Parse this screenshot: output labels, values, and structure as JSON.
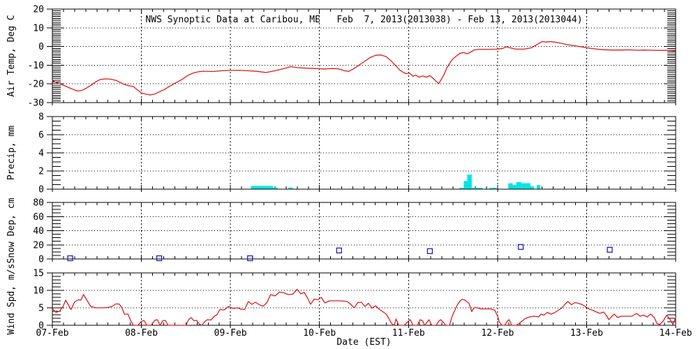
{
  "figure": {
    "title": "NWS Synoptic Data at Caribou, ME   Feb  7, 2013(2013038) - Feb 13, 2013(2013044)",
    "xlabel": "Date (EST)",
    "x_tick_labels": [
      "07-Feb",
      "08-Feb",
      "09-Feb",
      "10-Feb",
      "11-Feb",
      "12-Feb",
      "13-Feb",
      "14-Feb"
    ],
    "background": "#ffffff",
    "frame_color": "#000000"
  },
  "chart_data": [
    {
      "id": "air-temp",
      "type": "line",
      "ylabel": "Air Temp, Deg C",
      "ylim": [
        -30,
        20
      ],
      "yticks": [
        -30,
        -20,
        -10,
        0,
        10,
        20
      ],
      "y_minor_step": 1,
      "color": "#dc1c1c",
      "x_unit": "days since 07-Feb-2013 00:00 EST",
      "points": [
        [
          0.0,
          -18.3
        ],
        [
          0.07,
          -19.8
        ],
        [
          0.14,
          -21.0
        ],
        [
          0.21,
          -22.5
        ],
        [
          0.28,
          -23.8
        ],
        [
          0.33,
          -23.5
        ],
        [
          0.38,
          -22.3
        ],
        [
          0.44,
          -20.6
        ],
        [
          0.49,
          -18.8
        ],
        [
          0.54,
          -17.6
        ],
        [
          0.6,
          -17.3
        ],
        [
          0.66,
          -17.5
        ],
        [
          0.72,
          -18.2
        ],
        [
          0.8,
          -20.1
        ],
        [
          0.86,
          -21.0
        ],
        [
          0.91,
          -21.4
        ],
        [
          0.95,
          -23.0
        ],
        [
          1.0,
          -24.9
        ],
        [
          1.05,
          -25.5
        ],
        [
          1.1,
          -25.9
        ],
        [
          1.15,
          -25.4
        ],
        [
          1.2,
          -24.3
        ],
        [
          1.26,
          -23.0
        ],
        [
          1.32,
          -21.2
        ],
        [
          1.38,
          -19.6
        ],
        [
          1.45,
          -17.8
        ],
        [
          1.52,
          -15.5
        ],
        [
          1.58,
          -14.2
        ],
        [
          1.64,
          -13.5
        ],
        [
          1.7,
          -13.2
        ],
        [
          1.8,
          -13.4
        ],
        [
          1.9,
          -13.0
        ],
        [
          2.0,
          -12.8
        ],
        [
          2.1,
          -12.7
        ],
        [
          2.2,
          -13.0
        ],
        [
          2.3,
          -13.3
        ],
        [
          2.4,
          -13.9
        ],
        [
          2.5,
          -13.0
        ],
        [
          2.6,
          -11.8
        ],
        [
          2.68,
          -10.8
        ],
        [
          2.75,
          -11.3
        ],
        [
          2.85,
          -11.6
        ],
        [
          2.95,
          -11.8
        ],
        [
          3.05,
          -12.0
        ],
        [
          3.15,
          -11.8
        ],
        [
          3.21,
          -11.9
        ],
        [
          3.28,
          -13.0
        ],
        [
          3.33,
          -13.3
        ],
        [
          3.38,
          -12.0
        ],
        [
          3.45,
          -9.8
        ],
        [
          3.51,
          -7.8
        ],
        [
          3.57,
          -5.9
        ],
        [
          3.63,
          -4.7
        ],
        [
          3.69,
          -4.5
        ],
        [
          3.75,
          -5.5
        ],
        [
          3.8,
          -7.5
        ],
        [
          3.85,
          -10.0
        ],
        [
          3.9,
          -12.5
        ],
        [
          3.93,
          -13.5
        ],
        [
          3.97,
          -14.5
        ],
        [
          4.01,
          -14.2
        ],
        [
          4.05,
          -16.0
        ],
        [
          4.08,
          -15.3
        ],
        [
          4.12,
          -16.4
        ],
        [
          4.16,
          -15.7
        ],
        [
          4.2,
          -16.4
        ],
        [
          4.24,
          -15.6
        ],
        [
          4.28,
          -17.2
        ],
        [
          4.31,
          -18.6
        ],
        [
          4.34,
          -19.8
        ],
        [
          4.37,
          -17.4
        ],
        [
          4.4,
          -15.0
        ],
        [
          4.43,
          -11.5
        ],
        [
          4.47,
          -8.5
        ],
        [
          4.5,
          -6.5
        ],
        [
          4.54,
          -5.0
        ],
        [
          4.58,
          -3.6
        ],
        [
          4.62,
          -3.3
        ],
        [
          4.66,
          -3.9
        ],
        [
          4.7,
          -2.9
        ],
        [
          4.74,
          -1.8
        ],
        [
          4.8,
          -1.5
        ],
        [
          4.9,
          -1.5
        ],
        [
          5.0,
          -1.4
        ],
        [
          5.06,
          -1.0
        ],
        [
          5.1,
          -0.2
        ],
        [
          5.15,
          -0.8
        ],
        [
          5.2,
          -1.4
        ],
        [
          5.3,
          -1.4
        ],
        [
          5.38,
          -0.7
        ],
        [
          5.44,
          1.0
        ],
        [
          5.5,
          2.6
        ],
        [
          5.55,
          2.4
        ],
        [
          5.6,
          2.6
        ],
        [
          5.66,
          2.2
        ],
        [
          5.72,
          1.6
        ],
        [
          5.78,
          1.0
        ],
        [
          5.84,
          0.6
        ],
        [
          5.9,
          0.1
        ],
        [
          5.97,
          -0.4
        ],
        [
          6.03,
          -0.9
        ],
        [
          6.1,
          -1.3
        ],
        [
          6.18,
          -1.7
        ],
        [
          6.28,
          -1.9
        ],
        [
          6.38,
          -1.9
        ],
        [
          6.48,
          -1.8
        ],
        [
          6.57,
          -2.0
        ],
        [
          6.65,
          -1.9
        ],
        [
          6.73,
          -2.0
        ],
        [
          6.82,
          -2.1
        ],
        [
          6.9,
          -2.1
        ],
        [
          7.0,
          -2.4
        ]
      ]
    },
    {
      "id": "precip",
      "type": "bar",
      "ylabel": "Precip, mm",
      "ylim": [
        0,
        8
      ],
      "yticks": [
        0,
        2,
        4,
        6,
        8
      ],
      "y_minor_step": 0.5,
      "color": "#00e5e5",
      "bars": [
        [
          2.23,
          2.48,
          0.35
        ],
        [
          2.48,
          2.53,
          0.18
        ],
        [
          2.65,
          2.7,
          0.18
        ],
        [
          4.57,
          4.62,
          0.15
        ],
        [
          4.62,
          4.66,
          0.9
        ],
        [
          4.66,
          4.71,
          1.6
        ],
        [
          4.71,
          4.83,
          0.15
        ],
        [
          4.91,
          4.99,
          0.15
        ],
        [
          5.12,
          5.17,
          0.65
        ],
        [
          5.17,
          5.21,
          0.45
        ],
        [
          5.21,
          5.27,
          0.78
        ],
        [
          5.27,
          5.37,
          0.65
        ],
        [
          5.37,
          5.41,
          0.3
        ],
        [
          5.44,
          5.48,
          0.45
        ]
      ]
    },
    {
      "id": "snow-depth",
      "type": "scatter",
      "marker": "open-square",
      "ylabel": "Snow Dep, cm",
      "ylim": [
        0,
        80
      ],
      "yticks": [
        0,
        20,
        40,
        60,
        80
      ],
      "y_minor_step": 5,
      "color": "#2020c0",
      "points": [
        [
          0.2,
          1
        ],
        [
          1.2,
          1
        ],
        [
          2.22,
          1
        ],
        [
          3.22,
          12
        ],
        [
          4.24,
          11
        ],
        [
          5.26,
          17
        ],
        [
          6.26,
          13
        ]
      ]
    },
    {
      "id": "wind-speed",
      "type": "line",
      "ylabel": "Wind Spd, m/s",
      "ylim": [
        0,
        15
      ],
      "yticks": [
        0,
        5,
        10,
        15
      ],
      "y_minor_step": 1,
      "color": "#dc1c1c",
      "points": [
        [
          0.0,
          4.8
        ],
        [
          0.04,
          3.7
        ],
        [
          0.08,
          4.0
        ],
        [
          0.12,
          5.4
        ],
        [
          0.15,
          7.2
        ],
        [
          0.18,
          5.8
        ],
        [
          0.21,
          4.5
        ],
        [
          0.25,
          6.7
        ],
        [
          0.29,
          7.3
        ],
        [
          0.32,
          7.2
        ],
        [
          0.35,
          8.8
        ],
        [
          0.39,
          7.1
        ],
        [
          0.43,
          5.4
        ],
        [
          0.49,
          5.0
        ],
        [
          0.56,
          5.0
        ],
        [
          0.62,
          5.1
        ],
        [
          0.67,
          5.4
        ],
        [
          0.71,
          6.1
        ],
        [
          0.75,
          6.1
        ],
        [
          0.78,
          5.1
        ],
        [
          0.81,
          3.2
        ],
        [
          0.85,
          3.2
        ],
        [
          0.88,
          1.3
        ],
        [
          0.91,
          0
        ],
        [
          0.96,
          0
        ],
        [
          1.0,
          1.1
        ],
        [
          1.03,
          1.4
        ],
        [
          1.06,
          0
        ],
        [
          1.11,
          0
        ],
        [
          1.15,
          1.4
        ],
        [
          1.18,
          1.6
        ],
        [
          1.21,
          0
        ],
        [
          1.24,
          1.3
        ],
        [
          1.27,
          1.4
        ],
        [
          1.3,
          0
        ],
        [
          1.4,
          0
        ],
        [
          1.5,
          0
        ],
        [
          1.53,
          1.6
        ],
        [
          1.56,
          2.2
        ],
        [
          1.59,
          1.3
        ],
        [
          1.62,
          1.4
        ],
        [
          1.65,
          0.3
        ],
        [
          1.68,
          0
        ],
        [
          1.71,
          1.0
        ],
        [
          1.74,
          1.6
        ],
        [
          1.78,
          1.5
        ],
        [
          1.82,
          2.6
        ],
        [
          1.85,
          3.0
        ],
        [
          1.88,
          4.5
        ],
        [
          1.93,
          4.4
        ],
        [
          1.98,
          5.4
        ],
        [
          2.03,
          4.8
        ],
        [
          2.08,
          5.0
        ],
        [
          2.12,
          4.6
        ],
        [
          2.16,
          4.5
        ],
        [
          2.2,
          6.8
        ],
        [
          2.24,
          6.0
        ],
        [
          2.28,
          6.6
        ],
        [
          2.33,
          5.8
        ],
        [
          2.37,
          5.5
        ],
        [
          2.41,
          6.5
        ],
        [
          2.45,
          8.8
        ],
        [
          2.5,
          8.4
        ],
        [
          2.55,
          9.5
        ],
        [
          2.6,
          9.3
        ],
        [
          2.65,
          8.8
        ],
        [
          2.7,
          8.9
        ],
        [
          2.75,
          10.3
        ],
        [
          2.79,
          9.0
        ],
        [
          2.83,
          9.4
        ],
        [
          2.87,
          7.6
        ],
        [
          2.9,
          6.0
        ],
        [
          2.94,
          7.5
        ],
        [
          2.98,
          7.3
        ],
        [
          3.02,
          8.0
        ],
        [
          3.06,
          6.4
        ],
        [
          3.11,
          7.0
        ],
        [
          3.18,
          7.0
        ],
        [
          3.25,
          7.0
        ],
        [
          3.31,
          6.8
        ],
        [
          3.35,
          6.0
        ],
        [
          3.39,
          5.0
        ],
        [
          3.43,
          6.5
        ],
        [
          3.47,
          6.6
        ],
        [
          3.51,
          5.4
        ],
        [
          3.55,
          6.3
        ],
        [
          3.59,
          4.9
        ],
        [
          3.63,
          5.6
        ],
        [
          3.67,
          4.6
        ],
        [
          3.71,
          3.9
        ],
        [
          3.75,
          3.2
        ],
        [
          3.78,
          1.9
        ],
        [
          3.81,
          0.5
        ],
        [
          3.84,
          0
        ],
        [
          3.86,
          1.8
        ],
        [
          3.89,
          0
        ],
        [
          3.95,
          0
        ],
        [
          4.0,
          1.2
        ],
        [
          4.02,
          1.6
        ],
        [
          4.05,
          0
        ],
        [
          4.1,
          0
        ],
        [
          4.13,
          1.6
        ],
        [
          4.16,
          1.2
        ],
        [
          4.18,
          0
        ],
        [
          4.21,
          0.9
        ],
        [
          4.23,
          1.6
        ],
        [
          4.26,
          0
        ],
        [
          4.31,
          0
        ],
        [
          4.34,
          1.2
        ],
        [
          4.36,
          1.6
        ],
        [
          4.39,
          0.9
        ],
        [
          4.42,
          0
        ],
        [
          4.46,
          0
        ],
        [
          4.49,
          2.6
        ],
        [
          4.52,
          4.3
        ],
        [
          4.55,
          5.9
        ],
        [
          4.58,
          7.0
        ],
        [
          4.6,
          7.4
        ],
        [
          4.63,
          7.3
        ],
        [
          4.65,
          6.8
        ],
        [
          4.68,
          6.3
        ],
        [
          4.71,
          3.9
        ],
        [
          4.73,
          4.9
        ],
        [
          4.76,
          5.1
        ],
        [
          4.81,
          4.7
        ],
        [
          4.87,
          4.7
        ],
        [
          4.92,
          4.7
        ],
        [
          4.97,
          4.3
        ],
        [
          5.0,
          2.6
        ],
        [
          5.02,
          0.9
        ],
        [
          5.05,
          0
        ],
        [
          5.08,
          0
        ],
        [
          5.11,
          1.2
        ],
        [
          5.13,
          1.6
        ],
        [
          5.16,
          0
        ],
        [
          5.21,
          0
        ],
        [
          5.24,
          0.5
        ],
        [
          5.26,
          0.9
        ],
        [
          5.31,
          1.9
        ],
        [
          5.36,
          2.4
        ],
        [
          5.41,
          2.6
        ],
        [
          5.46,
          2.4
        ],
        [
          5.49,
          3.2
        ],
        [
          5.52,
          2.9
        ],
        [
          5.56,
          3.7
        ],
        [
          5.6,
          3.2
        ],
        [
          5.64,
          3.6
        ],
        [
          5.68,
          4.3
        ],
        [
          5.72,
          4.9
        ],
        [
          5.76,
          6.1
        ],
        [
          5.79,
          6.8
        ],
        [
          5.83,
          5.9
        ],
        [
          5.87,
          6.5
        ],
        [
          5.91,
          6.3
        ],
        [
          5.95,
          5.9
        ],
        [
          5.99,
          5.3
        ],
        [
          6.03,
          4.6
        ],
        [
          6.07,
          4.3
        ],
        [
          6.11,
          3.8
        ],
        [
          6.15,
          3.4
        ],
        [
          6.19,
          3.8
        ],
        [
          6.22,
          2.9
        ],
        [
          6.25,
          1.6
        ],
        [
          6.27,
          2.2
        ],
        [
          6.31,
          3.2
        ],
        [
          6.35,
          2.2
        ],
        [
          6.39,
          2.6
        ],
        [
          6.45,
          2.6
        ],
        [
          6.51,
          2.6
        ],
        [
          6.56,
          3.4
        ],
        [
          6.6,
          2.6
        ],
        [
          6.64,
          2.9
        ],
        [
          6.68,
          2.4
        ],
        [
          6.72,
          3.2
        ],
        [
          6.76,
          2.2
        ],
        [
          6.79,
          0.5
        ],
        [
          6.82,
          0.2
        ],
        [
          6.86,
          1.2
        ],
        [
          6.9,
          2.9
        ],
        [
          6.94,
          1.6
        ],
        [
          6.97,
          0.2
        ],
        [
          7.0,
          2.2
        ]
      ]
    }
  ]
}
